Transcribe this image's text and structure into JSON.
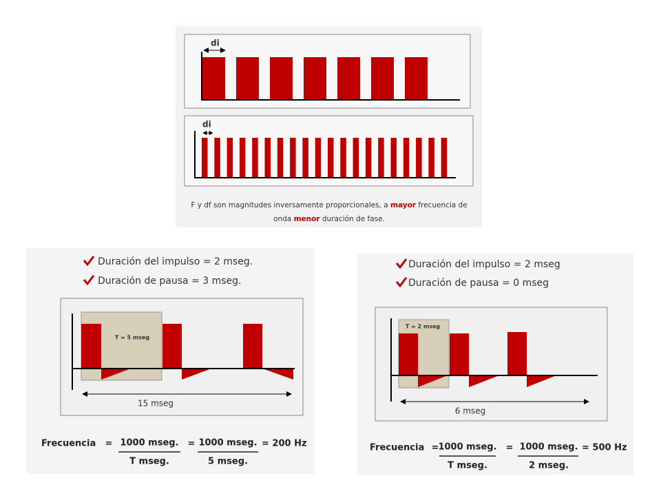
{
  "top": {
    "di_1": "di",
    "di_2": "di",
    "caption": {
      "part1": "F y df son magnitudes inversamente proporcionales, a",
      "bold1": "mayor",
      "part2": "frecuencia de",
      "part3": "onda",
      "bold2": "menor",
      "part4": "duración de fase."
    }
  },
  "left": {
    "check1": "Duración del impulso = 2 mseg.",
    "check2": "Duración de pausa = 3 mseg.",
    "period": "T = 5 mseg",
    "span": "15 mseg",
    "formula": {
      "label": "Frecuencia",
      "eq1": "=",
      "num1": "1000 mseg.",
      "den1": "T mseg.",
      "eq2": "=",
      "num2": "1000 mseg.",
      "den2": "5 mseg.",
      "result": "= 200 Hz"
    }
  },
  "right": {
    "check1": "Duración del impulso = 2 mseg",
    "check2": "Duración de pausa = 0 mseg",
    "period": "T = 2 mseg",
    "span": "6 mseg",
    "formula": {
      "label": "Frecuencia",
      "eq1": "=",
      "num1": "1000 mseg.",
      "den1": "T mseg.",
      "eq2": "=",
      "num2": "1000 mseg.",
      "den2": "2 mseg.",
      "result": "= 500 Hz"
    }
  }
}
